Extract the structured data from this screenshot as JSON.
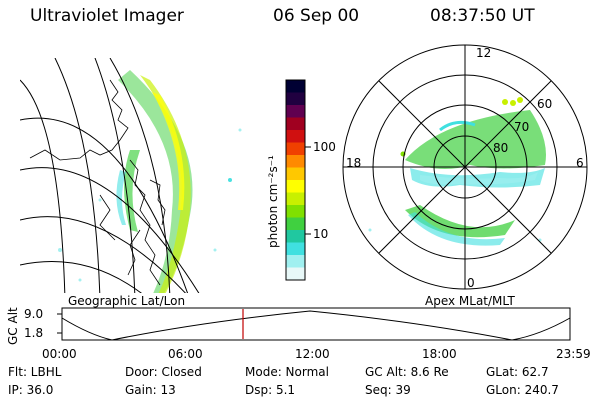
{
  "header": {
    "title": "Ultraviolet Imager",
    "date": "06 Sep 00",
    "time": "08:37:50 UT"
  },
  "colorbar": {
    "unit_label": "photon cm⁻²s⁻¹",
    "ticks": [
      "100",
      "10"
    ],
    "colors": [
      "#000033",
      "#200040",
      "#600050",
      "#a00020",
      "#d01010",
      "#f04000",
      "#ff8a00",
      "#ffc800",
      "#ffff00",
      "#c8f000",
      "#80e000",
      "#40d040",
      "#20c8a0",
      "#40e0e0",
      "#a0f0f0",
      "#e8f8f8"
    ]
  },
  "maps": {
    "left_label": "Geographic Lat/Lon",
    "right_label": "Apex MLat/MLT",
    "polar_labels": {
      "top": "12",
      "left": "18",
      "right": "6",
      "bottom": "0",
      "lat60": "60",
      "lat70": "70",
      "lat80": "80"
    }
  },
  "timeline": {
    "axis_title": "GC Alt",
    "y_ticks": [
      "9.0",
      "1.8"
    ],
    "x_ticks": [
      "00:00",
      "06:00",
      "12:00",
      "18:00",
      "23:59"
    ],
    "marker_color": "#c00000"
  },
  "info": {
    "rows": [
      [
        {
          "key": "flt",
          "text": "Flt: LBHL"
        },
        {
          "key": "door",
          "text": "Door: Closed"
        },
        {
          "key": "mode",
          "text": "Mode: Normal"
        },
        {
          "key": "gcalt",
          "text": "GC Alt: 8.6 Re"
        },
        {
          "key": "glat",
          "text": "GLat:  62.7"
        }
      ],
      [
        {
          "key": "ip",
          "text": "IP: 36.0"
        },
        {
          "key": "gain",
          "text": "Gain: 13"
        },
        {
          "key": "dsp",
          "text": "Dsp:    5.1"
        },
        {
          "key": "seq",
          "text": "Seq: 39"
        },
        {
          "key": "glon",
          "text": "GLon: 240.7"
        }
      ]
    ]
  }
}
